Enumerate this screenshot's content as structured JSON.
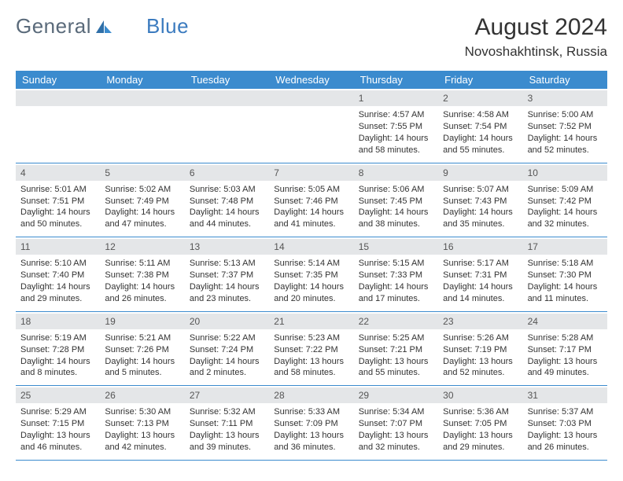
{
  "brand": {
    "part1": "General",
    "part2": "Blue"
  },
  "title": "August 2024",
  "location": "Novoshakhtinsk, Russia",
  "day_headers": [
    "Sunday",
    "Monday",
    "Tuesday",
    "Wednesday",
    "Thursday",
    "Friday",
    "Saturday"
  ],
  "colors": {
    "header_bg": "#3b8bce",
    "header_text": "#ffffff",
    "daynum_bg": "#e4e6e8",
    "border": "#3b8bce",
    "brand_gray": "#5a6a7a",
    "brand_blue": "#3b7bbf"
  },
  "fonts": {
    "title_size": 30,
    "location_size": 17,
    "header_size": 13,
    "cell_size": 11
  },
  "layout": {
    "cols": 7,
    "rows": 5,
    "leading_blanks": 4
  },
  "days": [
    {
      "n": 1,
      "sr": "4:57 AM",
      "ss": "7:55 PM",
      "dl": "14 hours and 58 minutes."
    },
    {
      "n": 2,
      "sr": "4:58 AM",
      "ss": "7:54 PM",
      "dl": "14 hours and 55 minutes."
    },
    {
      "n": 3,
      "sr": "5:00 AM",
      "ss": "7:52 PM",
      "dl": "14 hours and 52 minutes."
    },
    {
      "n": 4,
      "sr": "5:01 AM",
      "ss": "7:51 PM",
      "dl": "14 hours and 50 minutes."
    },
    {
      "n": 5,
      "sr": "5:02 AM",
      "ss": "7:49 PM",
      "dl": "14 hours and 47 minutes."
    },
    {
      "n": 6,
      "sr": "5:03 AM",
      "ss": "7:48 PM",
      "dl": "14 hours and 44 minutes."
    },
    {
      "n": 7,
      "sr": "5:05 AM",
      "ss": "7:46 PM",
      "dl": "14 hours and 41 minutes."
    },
    {
      "n": 8,
      "sr": "5:06 AM",
      "ss": "7:45 PM",
      "dl": "14 hours and 38 minutes."
    },
    {
      "n": 9,
      "sr": "5:07 AM",
      "ss": "7:43 PM",
      "dl": "14 hours and 35 minutes."
    },
    {
      "n": 10,
      "sr": "5:09 AM",
      "ss": "7:42 PM",
      "dl": "14 hours and 32 minutes."
    },
    {
      "n": 11,
      "sr": "5:10 AM",
      "ss": "7:40 PM",
      "dl": "14 hours and 29 minutes."
    },
    {
      "n": 12,
      "sr": "5:11 AM",
      "ss": "7:38 PM",
      "dl": "14 hours and 26 minutes."
    },
    {
      "n": 13,
      "sr": "5:13 AM",
      "ss": "7:37 PM",
      "dl": "14 hours and 23 minutes."
    },
    {
      "n": 14,
      "sr": "5:14 AM",
      "ss": "7:35 PM",
      "dl": "14 hours and 20 minutes."
    },
    {
      "n": 15,
      "sr": "5:15 AM",
      "ss": "7:33 PM",
      "dl": "14 hours and 17 minutes."
    },
    {
      "n": 16,
      "sr": "5:17 AM",
      "ss": "7:31 PM",
      "dl": "14 hours and 14 minutes."
    },
    {
      "n": 17,
      "sr": "5:18 AM",
      "ss": "7:30 PM",
      "dl": "14 hours and 11 minutes."
    },
    {
      "n": 18,
      "sr": "5:19 AM",
      "ss": "7:28 PM",
      "dl": "14 hours and 8 minutes."
    },
    {
      "n": 19,
      "sr": "5:21 AM",
      "ss": "7:26 PM",
      "dl": "14 hours and 5 minutes."
    },
    {
      "n": 20,
      "sr": "5:22 AM",
      "ss": "7:24 PM",
      "dl": "14 hours and 2 minutes."
    },
    {
      "n": 21,
      "sr": "5:23 AM",
      "ss": "7:22 PM",
      "dl": "13 hours and 58 minutes."
    },
    {
      "n": 22,
      "sr": "5:25 AM",
      "ss": "7:21 PM",
      "dl": "13 hours and 55 minutes."
    },
    {
      "n": 23,
      "sr": "5:26 AM",
      "ss": "7:19 PM",
      "dl": "13 hours and 52 minutes."
    },
    {
      "n": 24,
      "sr": "5:28 AM",
      "ss": "7:17 PM",
      "dl": "13 hours and 49 minutes."
    },
    {
      "n": 25,
      "sr": "5:29 AM",
      "ss": "7:15 PM",
      "dl": "13 hours and 46 minutes."
    },
    {
      "n": 26,
      "sr": "5:30 AM",
      "ss": "7:13 PM",
      "dl": "13 hours and 42 minutes."
    },
    {
      "n": 27,
      "sr": "5:32 AM",
      "ss": "7:11 PM",
      "dl": "13 hours and 39 minutes."
    },
    {
      "n": 28,
      "sr": "5:33 AM",
      "ss": "7:09 PM",
      "dl": "13 hours and 36 minutes."
    },
    {
      "n": 29,
      "sr": "5:34 AM",
      "ss": "7:07 PM",
      "dl": "13 hours and 32 minutes."
    },
    {
      "n": 30,
      "sr": "5:36 AM",
      "ss": "7:05 PM",
      "dl": "13 hours and 29 minutes."
    },
    {
      "n": 31,
      "sr": "5:37 AM",
      "ss": "7:03 PM",
      "dl": "13 hours and 26 minutes."
    }
  ],
  "labels": {
    "sunrise": "Sunrise: ",
    "sunset": "Sunset: ",
    "daylight": "Daylight: "
  }
}
